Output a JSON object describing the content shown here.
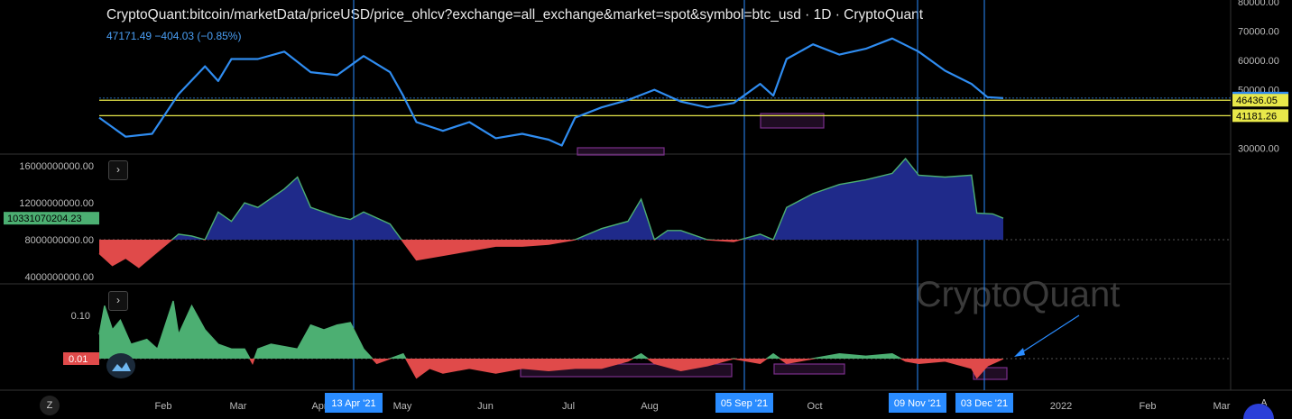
{
  "header": {
    "title": "CryptoQuant:bitcoin/marketData/priceUSD/price_ohlcv?exchange=all_exchange&market=spot&symbol=btc_usd · 1D · CryptoQuant",
    "subtitle": "47171.49  −404.03 (−0.85%)"
  },
  "watermark": "CryptoQuant",
  "buttons": {
    "expand1": "›",
    "expand2": "›",
    "z": "Z",
    "a": "A"
  },
  "colors": {
    "price_line": "#2f8cf0",
    "level_line": "#e8e84a",
    "positive_fill": "#4caf72",
    "negative_fill": "#e04a4a",
    "cap_fill": "#1f2a8a",
    "marker": "#2a8cff",
    "box": "#7a2f8a",
    "bg": "#000000"
  },
  "chart_data": [
    {
      "type": "line",
      "title": "",
      "ylim": [
        29000,
        80000
      ],
      "y_ticks": [
        "80000.00",
        "70000.00",
        "60000.00",
        "50000.00",
        "30000.00"
      ],
      "current_label": "47171.49",
      "levels": [
        {
          "label": "46436.05",
          "value": 46436.05
        },
        {
          "label": "41181.26",
          "value": 41181.26
        }
      ],
      "x": [
        0,
        10,
        20,
        30,
        40,
        45,
        50,
        60,
        70,
        80,
        90,
        100,
        110,
        115,
        120,
        130,
        140,
        150,
        160,
        170,
        175,
        180,
        190,
        200,
        210,
        220,
        230,
        240,
        250,
        255,
        260,
        270,
        280,
        290,
        300,
        310,
        320,
        330,
        336,
        342
      ],
      "values": [
        40500,
        34000,
        35000,
        48500,
        58000,
        53000,
        60500,
        60500,
        63000,
        56000,
        55000,
        61500,
        56000,
        48000,
        39000,
        36000,
        39000,
        33500,
        35000,
        33000,
        31000,
        40500,
        44000,
        46500,
        50000,
        46000,
        44000,
        45500,
        52000,
        48000,
        60500,
        65500,
        62000,
        64000,
        67500,
        63000,
        56500,
        52000,
        47500,
        47171
      ]
    },
    {
      "type": "area",
      "title": "",
      "ylim": [
        3500000000,
        17000000000
      ],
      "y_ticks": [
        "16000000000.00",
        "12000000000.00",
        "8000000000.00",
        "4000000000.00"
      ],
      "current_label": "10331070204.23",
      "baseline": 8000000000,
      "x": [
        0,
        5,
        10,
        15,
        20,
        30,
        35,
        40,
        45,
        50,
        55,
        60,
        70,
        75,
        80,
        90,
        95,
        100,
        110,
        120,
        130,
        140,
        150,
        160,
        170,
        180,
        190,
        200,
        205,
        210,
        215,
        220,
        230,
        240,
        250,
        255,
        260,
        270,
        280,
        290,
        300,
        305,
        310,
        320,
        330,
        332,
        338,
        342
      ],
      "values": [
        6500000000,
        5200000000,
        6000000000,
        5000000000,
        6200000000,
        8600000000,
        8400000000,
        8000000000,
        11000000000,
        10000000000,
        12000000000,
        11500000000,
        13500000000,
        14800000000,
        11500000000,
        10500000000,
        10200000000,
        11000000000,
        9700000000,
        5800000000,
        6300000000,
        6800000000,
        7300000000,
        7300000000,
        7500000000,
        8000000000,
        9200000000,
        10000000000,
        12400000000,
        8000000000,
        9000000000,
        9000000000,
        8000000000,
        7800000000,
        8600000000,
        8000000000,
        11500000000,
        13000000000,
        14000000000,
        14500000000,
        15200000000,
        16800000000,
        15000000000,
        14800000000,
        15000000000,
        10900000000,
        10800000000,
        10331070204
      ]
    },
    {
      "type": "area",
      "title": "",
      "ylim": [
        -0.05,
        0.16
      ],
      "y_ticks": [
        "0.10"
      ],
      "current_label": "0.01",
      "baseline": 0.01,
      "x": [
        0,
        2,
        5,
        8,
        12,
        18,
        22,
        28,
        30,
        35,
        40,
        45,
        50,
        55,
        58,
        60,
        65,
        75,
        80,
        85,
        90,
        95,
        100,
        105,
        110,
        115,
        120,
        125,
        130,
        140,
        150,
        160,
        170,
        180,
        190,
        200,
        205,
        210,
        220,
        230,
        240,
        250,
        255,
        260,
        270,
        280,
        290,
        300,
        305,
        310,
        320,
        330,
        332,
        336,
        340,
        342
      ],
      "values": [
        0.06,
        0.12,
        0.07,
        0.09,
        0.04,
        0.05,
        0.03,
        0.13,
        0.06,
        0.12,
        0.07,
        0.04,
        0.03,
        0.03,
        0.0,
        0.03,
        0.04,
        0.03,
        0.08,
        0.07,
        0.08,
        0.085,
        0.03,
        0.0,
        0.01,
        0.02,
        -0.03,
        -0.01,
        -0.02,
        -0.01,
        -0.02,
        -0.01,
        -0.015,
        -0.01,
        -0.01,
        0.005,
        0.02,
        0.0,
        -0.015,
        -0.005,
        0.01,
        0.0,
        0.02,
        0.0,
        0.01,
        0.02,
        0.015,
        0.02,
        0.005,
        0.0,
        0.005,
        -0.01,
        -0.03,
        -0.005,
        0.005,
        0.01
      ]
    }
  ],
  "x_axis": {
    "labels": [
      "Feb",
      "Mar",
      "Apr",
      "May",
      "Jun",
      "Jul",
      "Aug",
      "Oct",
      "2022",
      "Feb",
      "Mar"
    ],
    "marker_labels": [
      "13 Apr '21",
      "05 Sep '21",
      "09 Nov '21",
      "03 Dec '21"
    ]
  }
}
